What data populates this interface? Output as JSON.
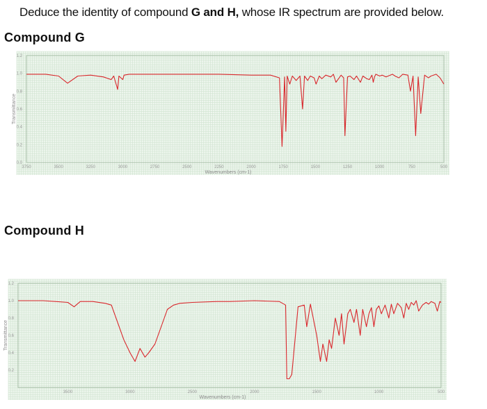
{
  "question": {
    "prefix": "Deduce the identity of compound ",
    "bold": "G and H,",
    "suffix": " whose IR spectrum are provided below."
  },
  "compound_g_label": "Compound G",
  "compound_h_label": "Compound H",
  "colors": {
    "spectrum": "#d9262b",
    "grid": "#cfe3cf",
    "frame": "#9bb59b"
  },
  "chart_data": [
    {
      "type": "line",
      "title": "Compound G",
      "xlabel": "Wavenumbers (cm-1)",
      "ylabel": "Transmittance",
      "xlim": [
        3750,
        500
      ],
      "ylim": [
        0.0,
        1.2
      ],
      "xticks": [
        3750,
        3500,
        3250,
        3000,
        2750,
        2500,
        2250,
        2000,
        1750,
        1500,
        1250,
        1000,
        750,
        500
      ],
      "yticks": [
        0.0,
        0.2,
        0.4,
        0.6,
        0.8,
        1.0,
        1.2
      ],
      "grid": true,
      "series": [
        {
          "x": [
            3750,
            3600,
            3500,
            3430,
            3350,
            3250,
            3150,
            3090,
            3070,
            3040,
            3030,
            3000,
            2990,
            2950,
            2800,
            2500,
            2250,
            2000,
            1850,
            1780,
            1760,
            1740,
            1730,
            1720,
            1700,
            1680,
            1650,
            1620,
            1600,
            1585,
            1560,
            1540,
            1510,
            1495,
            1470,
            1450,
            1420,
            1380,
            1360,
            1340,
            1300,
            1280,
            1270,
            1250,
            1230,
            1200,
            1180,
            1150,
            1130,
            1100,
            1080,
            1060,
            1050,
            1040,
            1030,
            1000,
            980,
            950,
            900,
            880,
            850,
            820,
            780,
            760,
            740,
            720,
            700,
            680,
            650,
            620,
            600,
            560,
            530,
            500
          ],
          "y": [
            0.99,
            0.99,
            0.97,
            0.89,
            0.97,
            0.98,
            0.96,
            0.93,
            0.97,
            0.82,
            0.97,
            0.93,
            0.98,
            0.99,
            0.99,
            0.99,
            0.99,
            0.98,
            0.98,
            0.95,
            0.18,
            0.96,
            0.35,
            0.97,
            0.88,
            0.97,
            0.92,
            0.97,
            0.6,
            0.97,
            0.92,
            0.97,
            0.95,
            0.88,
            0.97,
            0.94,
            0.98,
            0.96,
            0.99,
            0.9,
            0.98,
            0.95,
            0.3,
            0.96,
            0.97,
            0.93,
            0.97,
            0.9,
            0.97,
            0.94,
            0.93,
            0.98,
            0.9,
            0.96,
            0.99,
            0.97,
            0.98,
            0.96,
            0.99,
            0.97,
            0.95,
            0.99,
            0.98,
            0.8,
            0.97,
            0.3,
            0.96,
            0.55,
            0.98,
            0.95,
            0.97,
            0.99,
            0.95,
            0.88
          ]
        }
      ]
    },
    {
      "type": "line",
      "title": "Compound H",
      "xlabel": "Wavenumbers (cm-1)",
      "ylabel": "Transmittance",
      "xlim": [
        3900,
        500
      ],
      "ylim": [
        0.0,
        1.2
      ],
      "xticks": [
        3500,
        3000,
        2500,
        2000,
        1500,
        1000,
        500
      ],
      "yticks": [
        0.2,
        0.4,
        0.6,
        0.8,
        1.0,
        1.2
      ],
      "grid": true,
      "series": [
        {
          "x": [
            3900,
            3700,
            3600,
            3500,
            3450,
            3400,
            3300,
            3200,
            3150,
            3050,
            3000,
            2960,
            2920,
            2880,
            2850,
            2800,
            2700,
            2650,
            2600,
            2500,
            2300,
            2200,
            2000,
            1800,
            1750,
            1740,
            1720,
            1700,
            1650,
            1600,
            1580,
            1550,
            1500,
            1470,
            1450,
            1420,
            1400,
            1380,
            1350,
            1320,
            1300,
            1280,
            1250,
            1230,
            1200,
            1180,
            1150,
            1130,
            1100,
            1080,
            1060,
            1040,
            1020,
            1000,
            980,
            950,
            920,
            900,
            880,
            850,
            820,
            800,
            780,
            760,
            740,
            720,
            700,
            680,
            650,
            620,
            600,
            580,
            550,
            530,
            510,
            500
          ],
          "y": [
            1.0,
            1.0,
            0.99,
            0.98,
            0.93,
            0.99,
            0.99,
            0.97,
            0.95,
            0.55,
            0.4,
            0.3,
            0.45,
            0.35,
            0.4,
            0.5,
            0.9,
            0.95,
            0.97,
            0.98,
            0.99,
            0.99,
            1.0,
            0.99,
            0.95,
            0.1,
            0.1,
            0.15,
            0.93,
            0.95,
            0.7,
            0.96,
            0.6,
            0.3,
            0.5,
            0.3,
            0.55,
            0.45,
            0.8,
            0.6,
            0.85,
            0.5,
            0.85,
            0.9,
            0.75,
            0.9,
            0.6,
            0.9,
            0.7,
            0.85,
            0.92,
            0.7,
            0.9,
            0.94,
            0.85,
            0.95,
            0.8,
            0.96,
            0.85,
            0.97,
            0.92,
            0.8,
            0.97,
            0.9,
            0.98,
            0.95,
            1.0,
            0.88,
            0.95,
            0.98,
            0.96,
            0.99,
            0.97,
            0.88,
            0.99,
            0.98
          ]
        }
      ]
    }
  ]
}
